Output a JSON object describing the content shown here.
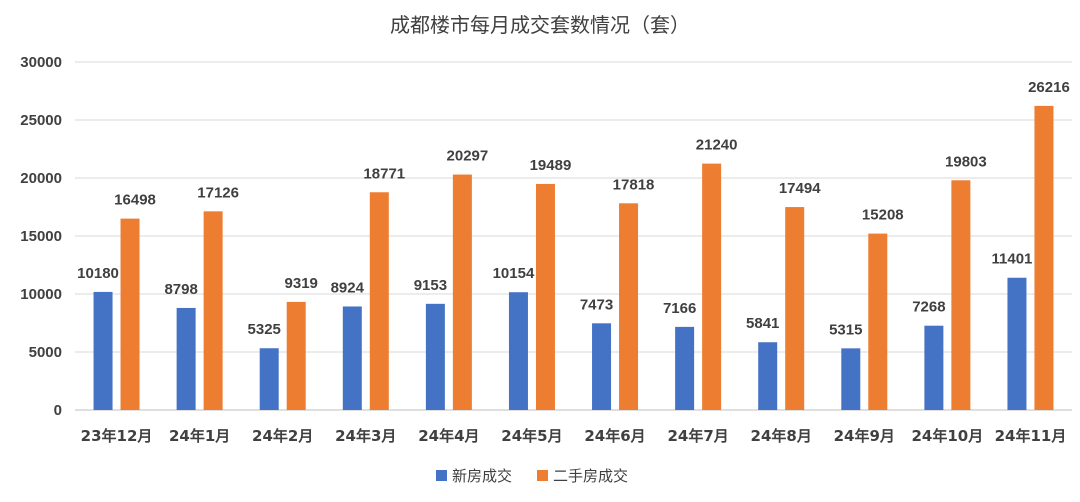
{
  "chart_data": {
    "type": "bar",
    "title": "成都楼市每月成交套数情况（套）",
    "categories": [
      "23年12月",
      "24年1月",
      "24年2月",
      "24年3月",
      "24年4月",
      "24年5月",
      "24年6月",
      "24年7月",
      "24年8月",
      "24年9月",
      "24年10月",
      "24年11月"
    ],
    "series": [
      {
        "name": "新房成交",
        "color": "#4472c4",
        "values": [
          10180,
          8798,
          5325,
          8924,
          9153,
          10154,
          7473,
          7166,
          5841,
          5315,
          7268,
          11401
        ]
      },
      {
        "name": "二手房成交",
        "color": "#ed7d31",
        "values": [
          16498,
          17126,
          9319,
          18771,
          20297,
          19489,
          17818,
          21240,
          17494,
          15208,
          19803,
          26216
        ]
      }
    ],
    "ylim": [
      0,
      30000
    ],
    "yticks": [
      0,
      5000,
      10000,
      15000,
      20000,
      25000,
      30000
    ],
    "grid": true,
    "legend": "bottom",
    "data_labels": true
  }
}
